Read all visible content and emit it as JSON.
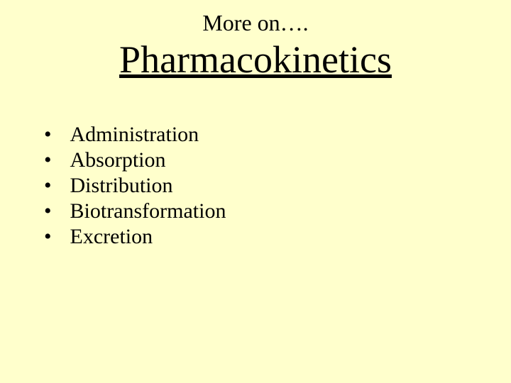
{
  "slide": {
    "background_color": "#ffffcc",
    "text_color": "#000000",
    "pretitle": "More on….",
    "pretitle_fontsize": 32,
    "title": "Pharmacokinetics",
    "title_fontsize": 54,
    "bullet_char": "•",
    "bullet_fontsize": 30,
    "items": [
      "Administration",
      "Absorption",
      "Distribution",
      "Biotransformation",
      "Excretion"
    ]
  }
}
